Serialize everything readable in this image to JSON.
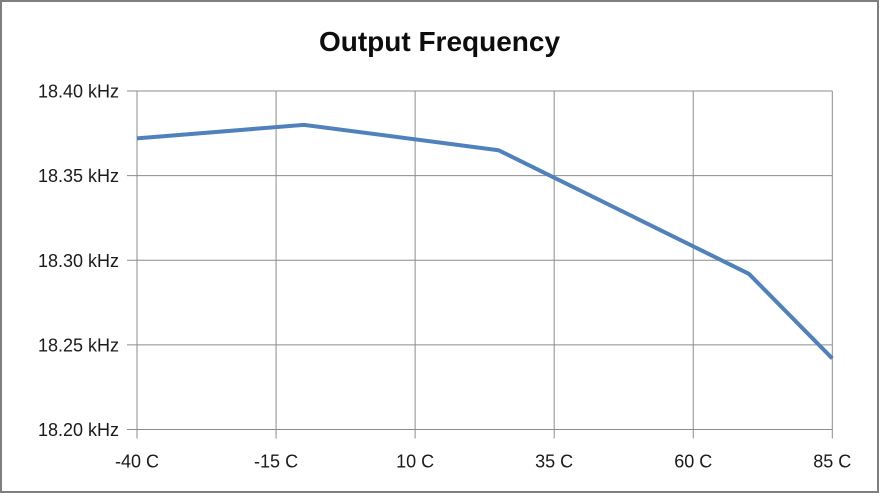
{
  "chart_data": {
    "type": "line",
    "title": "Output Frequency",
    "x": [
      -40,
      -10,
      25,
      70,
      85
    ],
    "series": [
      {
        "name": "Output Frequency",
        "values": [
          18.372,
          18.38,
          18.365,
          18.292,
          18.242
        ],
        "color": "#4f81bd",
        "stroke_width": 4
      }
    ],
    "xlabel": "",
    "ylabel": "",
    "xlim": [
      -40,
      85
    ],
    "ylim": [
      18.2,
      18.4
    ],
    "x_ticks": [
      {
        "value": -40,
        "label": "-40 C"
      },
      {
        "value": -15,
        "label": "-15 C"
      },
      {
        "value": 10,
        "label": "10 C"
      },
      {
        "value": 35,
        "label": "35 C"
      },
      {
        "value": 60,
        "label": "60 C"
      },
      {
        "value": 85,
        "label": "85 C"
      }
    ],
    "y_ticks": [
      {
        "value": 18.4,
        "label": "18.40 kHz"
      },
      {
        "value": 18.35,
        "label": "18.35 kHz"
      },
      {
        "value": 18.3,
        "label": "18.30 kHz"
      },
      {
        "value": 18.25,
        "label": "18.25 kHz"
      },
      {
        "value": 18.2,
        "label": "18.20 kHz"
      }
    ],
    "grid": true,
    "legend": "none",
    "colors": {
      "gridline": "#8c8c8c",
      "frame_border": "#7f7f7f",
      "axis_text": "#1a1a1a",
      "background": "#ffffff"
    }
  }
}
